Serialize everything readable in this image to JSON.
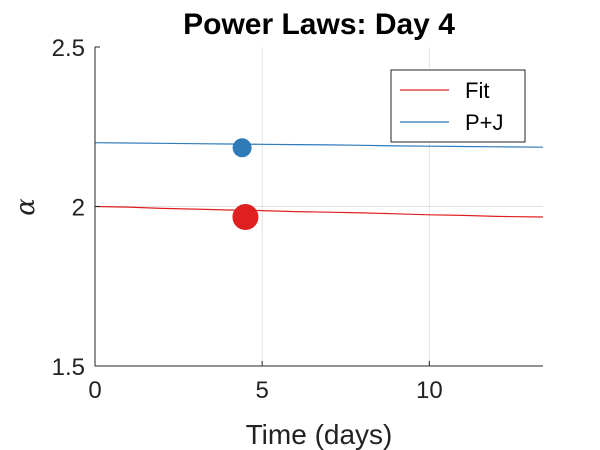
{
  "chart_data": {
    "type": "line",
    "title": "Power Laws: Day 4",
    "xlabel": "Time (days)",
    "ylabel": "α",
    "xlim": [
      0,
      13.4
    ],
    "ylim": [
      1.5,
      2.5
    ],
    "xticks": [
      0,
      5,
      10
    ],
    "yticks": [
      1.5,
      2,
      2.5
    ],
    "xtick_labels": [
      "0",
      "5",
      "10"
    ],
    "ytick_labels": [
      "1.5",
      "2",
      "2.5"
    ],
    "grid": true,
    "legend_position": "top-right",
    "series": [
      {
        "name": "Fit",
        "color": "#e02020",
        "x": [
          0,
          1,
          2,
          3,
          4,
          5,
          6,
          7,
          8,
          9,
          10,
          11,
          12,
          13.4
        ],
        "y": [
          2.0,
          1.998,
          1.994,
          1.992,
          1.989,
          1.987,
          1.984,
          1.982,
          1.98,
          1.977,
          1.974,
          1.972,
          1.969,
          1.967
        ],
        "marker": {
          "x": 4.5,
          "y": 1.967,
          "color": "#e02020"
        }
      },
      {
        "name": "P+J",
        "color": "#2f7bba",
        "x": [
          0,
          1,
          2,
          3,
          4,
          5,
          6,
          7,
          8,
          9,
          10,
          11,
          12,
          13.4
        ],
        "y": [
          2.2,
          2.199,
          2.198,
          2.197,
          2.196,
          2.195,
          2.194,
          2.193,
          2.192,
          2.19,
          2.189,
          2.188,
          2.187,
          2.186
        ],
        "marker": {
          "x": 4.4,
          "y": 2.184,
          "color": "#2f7bba"
        }
      }
    ]
  }
}
